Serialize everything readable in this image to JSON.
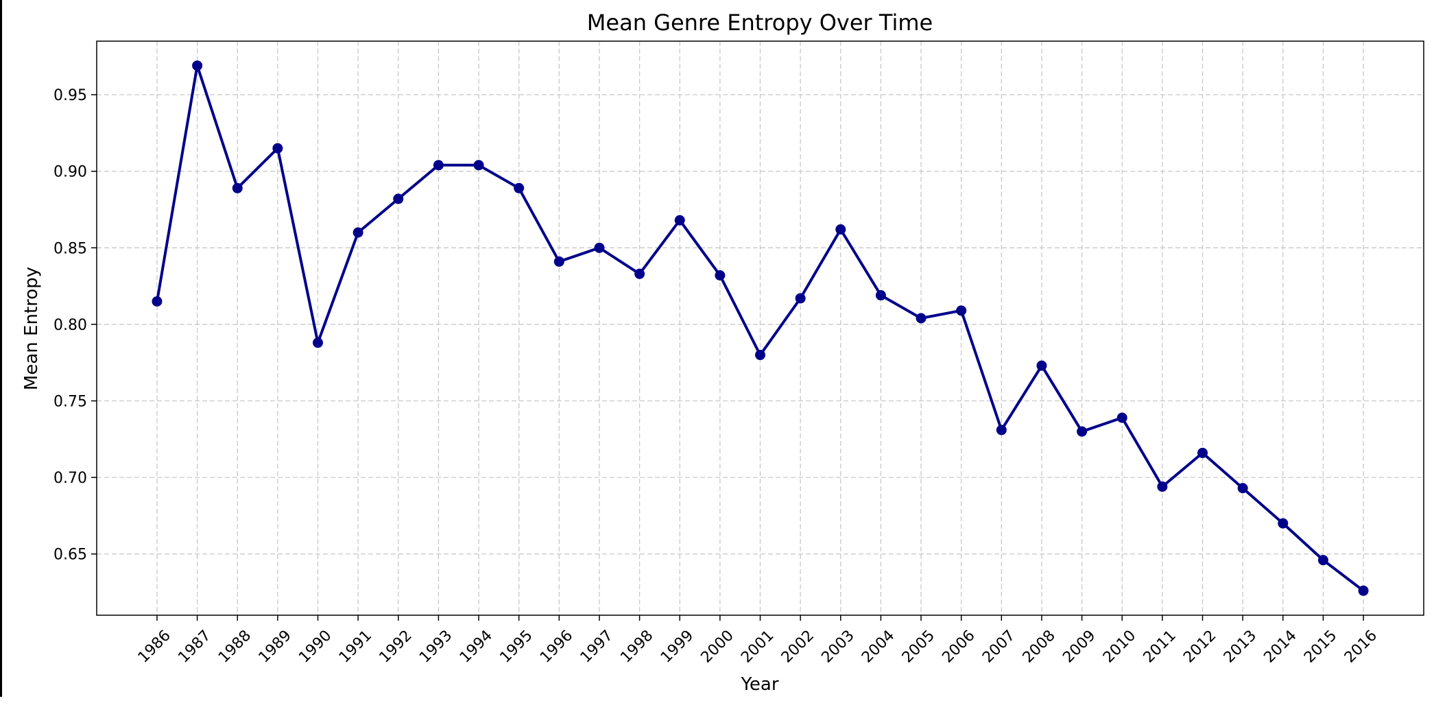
{
  "chart_data": {
    "type": "line",
    "title": "Mean Genre Entropy Over Time",
    "xlabel": "Year",
    "ylabel": "Mean Entropy",
    "x": [
      1986,
      1987,
      1988,
      1989,
      1990,
      1991,
      1992,
      1993,
      1994,
      1995,
      1996,
      1997,
      1998,
      1999,
      2000,
      2001,
      2002,
      2003,
      2004,
      2005,
      2006,
      2007,
      2008,
      2009,
      2010,
      2011,
      2012,
      2013,
      2014,
      2015,
      2016
    ],
    "x_tick_labels": [
      "1986",
      "1987",
      "1988",
      "1989",
      "1990",
      "1991",
      "1992",
      "1993",
      "1994",
      "1995",
      "1996",
      "1997",
      "1998",
      "1999",
      "2000",
      "2001",
      "2002",
      "2003",
      "2004",
      "2005",
      "2006",
      "2007",
      "2008",
      "2009",
      "2010",
      "2011",
      "2012",
      "2013",
      "2014",
      "2015",
      "2016"
    ],
    "values": [
      0.815,
      0.969,
      0.889,
      0.915,
      0.788,
      0.86,
      0.882,
      0.904,
      0.904,
      0.889,
      0.841,
      0.85,
      0.833,
      0.868,
      0.832,
      0.78,
      0.817,
      0.862,
      0.819,
      0.804,
      0.809,
      0.731,
      0.773,
      0.73,
      0.739,
      0.694,
      0.716,
      0.693,
      0.67,
      0.646,
      0.626
    ],
    "y_ticks": [
      0.65,
      0.7,
      0.75,
      0.8,
      0.85,
      0.9,
      0.95
    ],
    "y_tick_labels": [
      "0.65",
      "0.70",
      "0.75",
      "0.80",
      "0.85",
      "0.90",
      "0.95"
    ],
    "xlim": [
      1984.5,
      2017.5
    ],
    "ylim": [
      0.61,
      0.985
    ],
    "grid": true,
    "color": "#00008b"
  }
}
